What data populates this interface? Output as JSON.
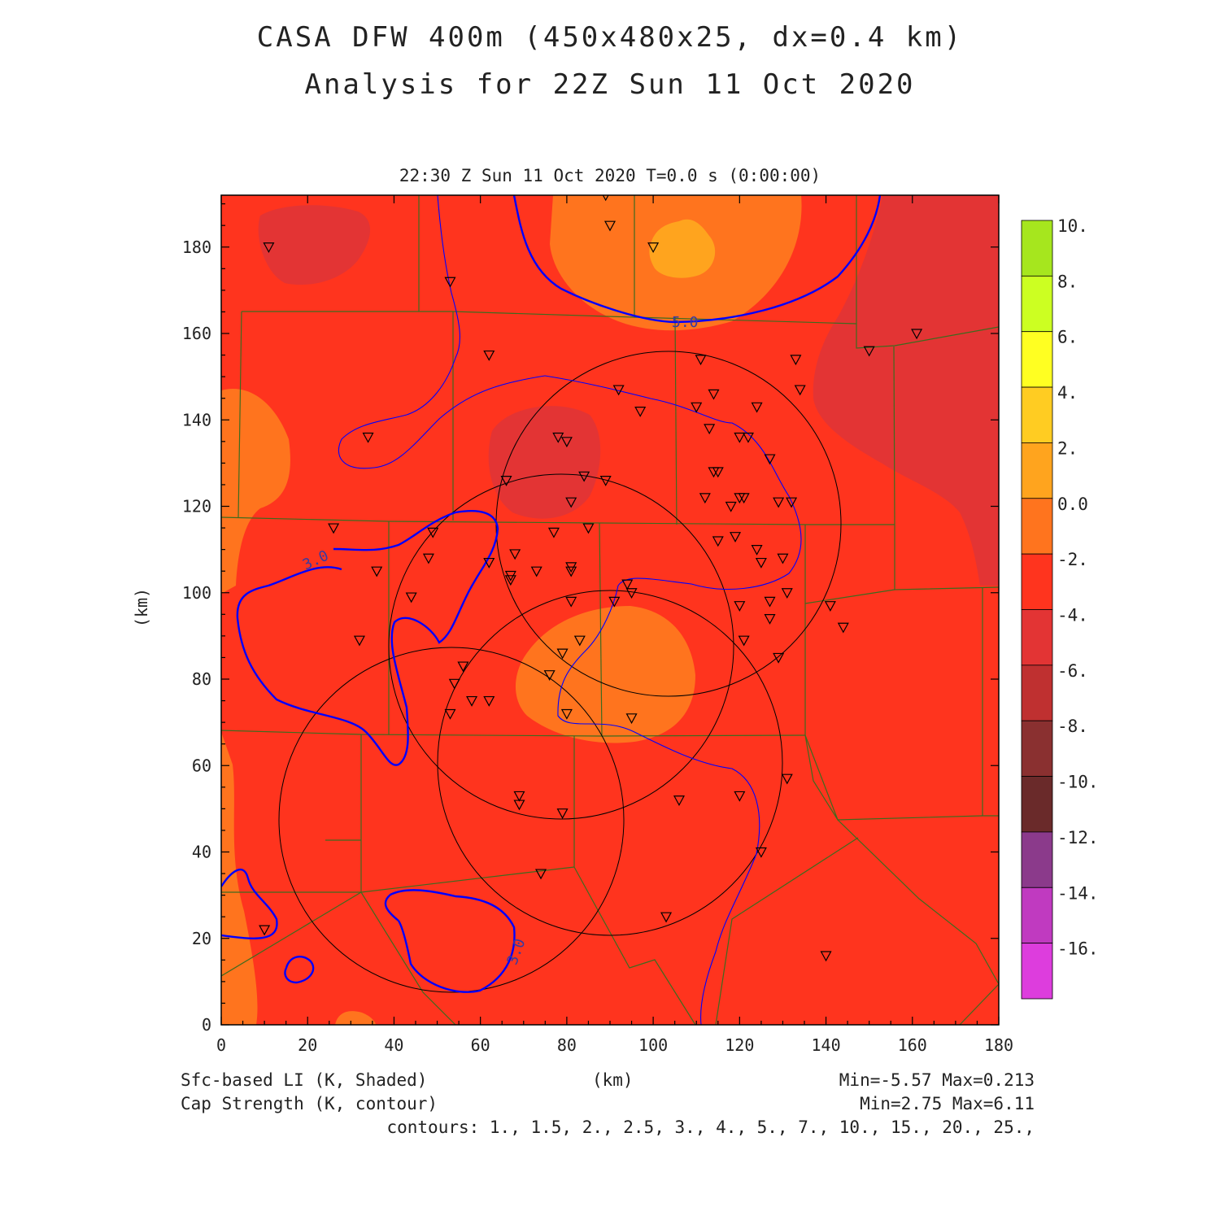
{
  "title": {
    "line1": "CASA DFW 400m (450x480x25, dx=0.4 km)",
    "line2": "Analysis for 22Z Sun 11 Oct 2020"
  },
  "timestamp": "22:30 Z Sun 11 Oct 2020   T=0.0 s (0:00:00)",
  "axes": {
    "x_label": "(km)",
    "y_label": "(km)",
    "x_range": [
      0,
      180
    ],
    "y_range": [
      0,
      192
    ],
    "x_ticks": [
      "0",
      "20",
      "40",
      "60",
      "80",
      "100",
      "120",
      "140",
      "160",
      "180"
    ],
    "y_ticks": [
      "0",
      "20",
      "40",
      "60",
      "80",
      "100",
      "120",
      "140",
      "160",
      "180"
    ]
  },
  "colorbar": {
    "labels": [
      "10.",
      "8.",
      "6.",
      "4.",
      "2.",
      "0.0",
      "-2.",
      "-4.",
      "-6.",
      "-8.",
      "-10.",
      "-12.",
      "-14.",
      "-16."
    ],
    "colors": [
      "#a6e61e",
      "#ccff22",
      "#ffff22",
      "#ffcc22",
      "#ffa41e",
      "#ff741e",
      "#ff341e",
      "#e33434",
      "#bf3030",
      "#8a3030",
      "#6a2a2a",
      "#8b3a8b",
      "#c03ac0",
      "#dd3ddd"
    ]
  },
  "captions": {
    "li": "Sfc-based LI (K, Shaded)",
    "cs": "Cap Strength (K, contour)",
    "km": "(km)",
    "li_minmax": "Min=-5.57 Max=0.213",
    "cs_minmax": "Min=2.75 Max=6.11",
    "contours": "contours: 1., 1.5, 2., 2.5, 3., 4., 5., 7., 10., 15., 20., 25.,"
  },
  "contour_labels": [
    "5.0",
    "3.0",
    "3.0"
  ],
  "colors": {
    "base_fill": "#ff341e",
    "warm_fill": "#ff741e",
    "hot_fill": "#ffa41e",
    "cool_fill": "#e33434",
    "county_line": "#3d6b1e",
    "contour_line": "#0000ff",
    "range_ring": "#000000"
  },
  "stations": [
    [
      11,
      180
    ],
    [
      53,
      172
    ],
    [
      89,
      192
    ],
    [
      90,
      185
    ],
    [
      100,
      180
    ],
    [
      62,
      155
    ],
    [
      34,
      136
    ],
    [
      150,
      156
    ],
    [
      161,
      160
    ],
    [
      111,
      154
    ],
    [
      133,
      154
    ],
    [
      134,
      147
    ],
    [
      92,
      147
    ],
    [
      97,
      142
    ],
    [
      110,
      143
    ],
    [
      114,
      146
    ],
    [
      124,
      143
    ],
    [
      113,
      138
    ],
    [
      78,
      136
    ],
    [
      80,
      135
    ],
    [
      120,
      136
    ],
    [
      122,
      136
    ],
    [
      127,
      131
    ],
    [
      114,
      128
    ],
    [
      115,
      128
    ],
    [
      66,
      126
    ],
    [
      84,
      127
    ],
    [
      89,
      126
    ],
    [
      81,
      121
    ],
    [
      112,
      122
    ],
    [
      118,
      120
    ],
    [
      120,
      122
    ],
    [
      121,
      122
    ],
    [
      129,
      121
    ],
    [
      132,
      121
    ],
    [
      26,
      115
    ],
    [
      49,
      114
    ],
    [
      77,
      114
    ],
    [
      85,
      115
    ],
    [
      115,
      112
    ],
    [
      119,
      113
    ],
    [
      124,
      110
    ],
    [
      125,
      107
    ],
    [
      130,
      108
    ],
    [
      36,
      105
    ],
    [
      48,
      108
    ],
    [
      62,
      107
    ],
    [
      67,
      103
    ],
    [
      67,
      104
    ],
    [
      68,
      109
    ],
    [
      73,
      105
    ],
    [
      81,
      106
    ],
    [
      81,
      105
    ],
    [
      94,
      102
    ],
    [
      95,
      100
    ],
    [
      91,
      98
    ],
    [
      81,
      98
    ],
    [
      44,
      99
    ],
    [
      120,
      97
    ],
    [
      127,
      98
    ],
    [
      127,
      94
    ],
    [
      131,
      100
    ],
    [
      141,
      97
    ],
    [
      144,
      92
    ],
    [
      32,
      89
    ],
    [
      79,
      86
    ],
    [
      83,
      89
    ],
    [
      121,
      89
    ],
    [
      56,
      83
    ],
    [
      54,
      79
    ],
    [
      76,
      81
    ],
    [
      58,
      75
    ],
    [
      62,
      75
    ],
    [
      53,
      72
    ],
    [
      80,
      72
    ],
    [
      95,
      71
    ],
    [
      129,
      85
    ],
    [
      131,
      57
    ],
    [
      69,
      53
    ],
    [
      69,
      51
    ],
    [
      79,
      49
    ],
    [
      106,
      52
    ],
    [
      120,
      53
    ],
    [
      125,
      40
    ],
    [
      74,
      35
    ],
    [
      103,
      25
    ],
    [
      10,
      22
    ],
    [
      140,
      16
    ]
  ]
}
